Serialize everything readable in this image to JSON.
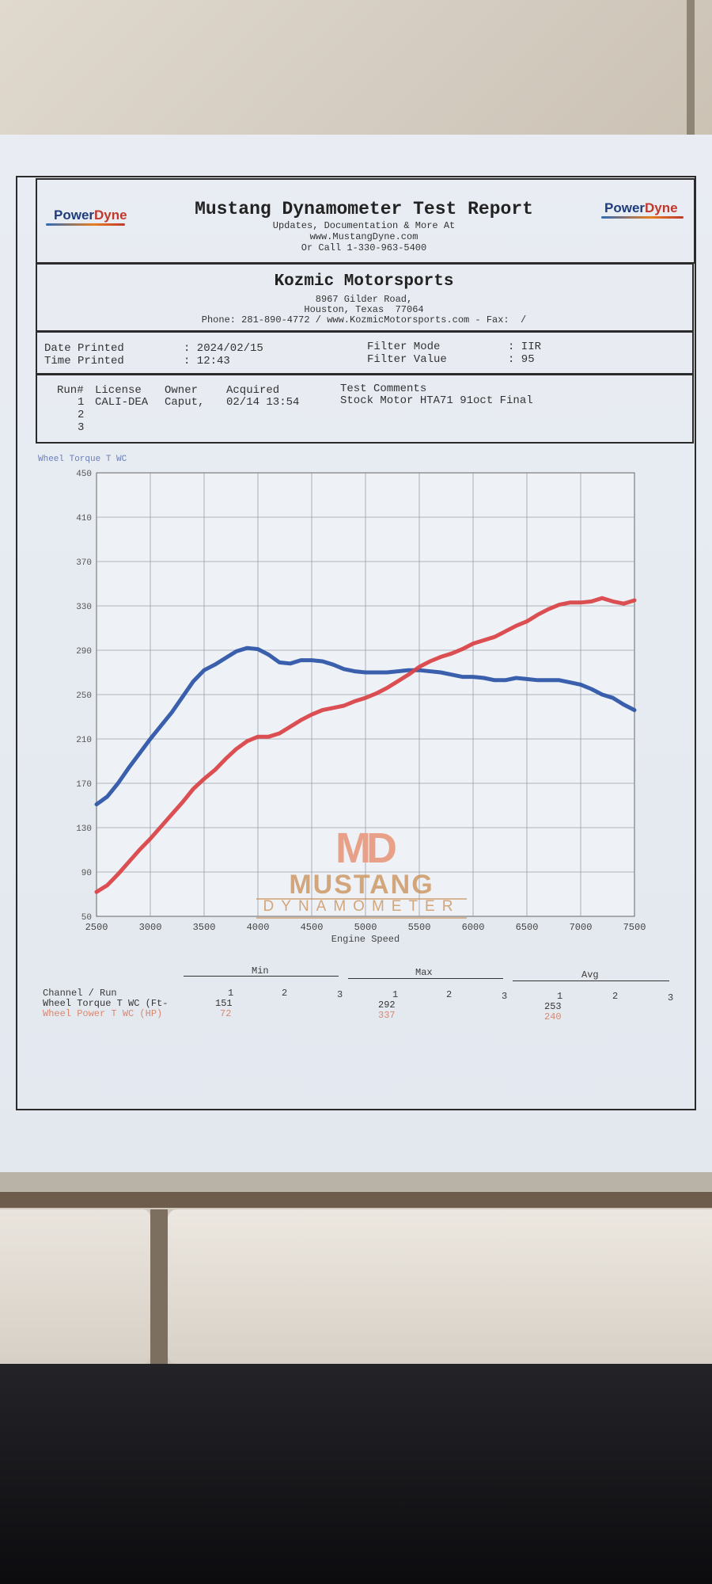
{
  "header": {
    "logo_left": {
      "part1": "Power",
      "part2": "Dyne"
    },
    "logo_right": {
      "part1": "Power",
      "part2": "Dyne"
    },
    "title": "Mustang Dynamometer Test Report",
    "line1": "Updates, Documentation & More At",
    "line2": "www.MustangDyne.com",
    "line3": "Or Call 1-330-963-5400"
  },
  "shop": {
    "name": "Kozmic Motorsports",
    "address1": "8967 Gilder Road,",
    "address2": "Houston, Texas  77064",
    "contact": "Phone: 281-890-4772 / www.KozmicMotorsports.com - Fax:  /"
  },
  "info": {
    "date_label": "Date Printed",
    "date_value": ": 2024/02/15",
    "time_label": "Time Printed",
    "time_value": ": 12:43",
    "filter_mode_label": "Filter Mode",
    "filter_mode_value": ": IIR",
    "filter_value_label": "Filter Value",
    "filter_value_value": ": 95"
  },
  "runs": {
    "headers": {
      "run": "Run#",
      "license": "License",
      "owner": "Owner",
      "acquired": "Acquired",
      "comments": "Test Comments"
    },
    "rows": [
      {
        "run": "1",
        "license": "CALI-DEA",
        "owner": "Caput,",
        "acquired": "02/14 13:54",
        "comments": "Stock Motor HTA71 91oct Final"
      },
      {
        "run": "2"
      },
      {
        "run": "3"
      }
    ]
  },
  "watermark": {
    "logo": "MD",
    "word": "MUSTANG",
    "sub": "DYNAMOMETER"
  },
  "stats": {
    "groups": {
      "min": "Min",
      "max": "Max",
      "avg": "Avg"
    },
    "channel_header": "Channel / Run",
    "run_numbers": [
      "1",
      "2",
      "3"
    ],
    "rows": [
      {
        "label": "Wheel Torque T WC (Ft-",
        "min": "151",
        "max": "292",
        "avg": "253"
      },
      {
        "label": "Wheel Power T WC (HP)",
        "min": "72",
        "max": "337",
        "avg": "240"
      }
    ]
  },
  "chart_data": {
    "type": "line",
    "title": "Wheel Torque T WC",
    "xlabel": "Engine Speed",
    "ylabel": "",
    "xlim": [
      2500,
      7500
    ],
    "ylim": [
      50,
      450
    ],
    "x_ticks": [
      "2500",
      "3000",
      "3500",
      "4000",
      "4500",
      "5000",
      "5500",
      "6000",
      "6500",
      "7000",
      "7500"
    ],
    "y_ticks": [
      "50",
      "90",
      "130",
      "170",
      "210",
      "250",
      "290",
      "330",
      "370",
      "410",
      "450"
    ],
    "grid": true,
    "colors": {
      "torque": "#2f56a8",
      "power": "#d94448"
    },
    "series": [
      {
        "name": "Wheel Torque T WC (Ft-",
        "color": "#2f56a8",
        "points": [
          [
            2500,
            151
          ],
          [
            2600,
            158
          ],
          [
            2700,
            170
          ],
          [
            2800,
            184
          ],
          [
            2900,
            197
          ],
          [
            3000,
            210
          ],
          [
            3100,
            222
          ],
          [
            3200,
            234
          ],
          [
            3300,
            248
          ],
          [
            3400,
            262
          ],
          [
            3500,
            272
          ],
          [
            3600,
            277
          ],
          [
            3700,
            283
          ],
          [
            3800,
            289
          ],
          [
            3900,
            292
          ],
          [
            4000,
            291
          ],
          [
            4100,
            286
          ],
          [
            4200,
            279
          ],
          [
            4300,
            278
          ],
          [
            4400,
            281
          ],
          [
            4500,
            281
          ],
          [
            4600,
            280
          ],
          [
            4700,
            277
          ],
          [
            4800,
            273
          ],
          [
            4900,
            271
          ],
          [
            5000,
            270
          ],
          [
            5200,
            270
          ],
          [
            5400,
            272
          ],
          [
            5500,
            272
          ],
          [
            5700,
            270
          ],
          [
            5800,
            268
          ],
          [
            5900,
            266
          ],
          [
            6000,
            266
          ],
          [
            6100,
            265
          ],
          [
            6200,
            263
          ],
          [
            6300,
            263
          ],
          [
            6400,
            265
          ],
          [
            6500,
            264
          ],
          [
            6600,
            263
          ],
          [
            6800,
            263
          ],
          [
            6900,
            261
          ],
          [
            7000,
            259
          ],
          [
            7100,
            255
          ],
          [
            7200,
            250
          ],
          [
            7300,
            247
          ],
          [
            7400,
            241
          ],
          [
            7500,
            236
          ]
        ]
      },
      {
        "name": "Wheel Power T WC (HP)",
        "color": "#d94448",
        "points": [
          [
            2500,
            72
          ],
          [
            2600,
            78
          ],
          [
            2700,
            88
          ],
          [
            2800,
            99
          ],
          [
            2900,
            110
          ],
          [
            3000,
            120
          ],
          [
            3100,
            131
          ],
          [
            3200,
            142
          ],
          [
            3300,
            153
          ],
          [
            3400,
            165
          ],
          [
            3500,
            174
          ],
          [
            3600,
            182
          ],
          [
            3700,
            192
          ],
          [
            3800,
            201
          ],
          [
            3900,
            208
          ],
          [
            4000,
            212
          ],
          [
            4100,
            212
          ],
          [
            4200,
            215
          ],
          [
            4300,
            221
          ],
          [
            4400,
            227
          ],
          [
            4500,
            232
          ],
          [
            4600,
            236
          ],
          [
            4700,
            238
          ],
          [
            4800,
            240
          ],
          [
            4900,
            244
          ],
          [
            5000,
            247
          ],
          [
            5100,
            251
          ],
          [
            5200,
            256
          ],
          [
            5300,
            262
          ],
          [
            5400,
            268
          ],
          [
            5500,
            275
          ],
          [
            5600,
            280
          ],
          [
            5700,
            284
          ],
          [
            5800,
            287
          ],
          [
            5900,
            291
          ],
          [
            6000,
            296
          ],
          [
            6100,
            299
          ],
          [
            6200,
            302
          ],
          [
            6300,
            307
          ],
          [
            6400,
            312
          ],
          [
            6500,
            316
          ],
          [
            6600,
            322
          ],
          [
            6700,
            327
          ],
          [
            6800,
            331
          ],
          [
            6900,
            333
          ],
          [
            7000,
            333
          ],
          [
            7100,
            334
          ],
          [
            7200,
            337
          ],
          [
            7300,
            334
          ],
          [
            7400,
            332
          ],
          [
            7500,
            335
          ]
        ]
      }
    ]
  }
}
